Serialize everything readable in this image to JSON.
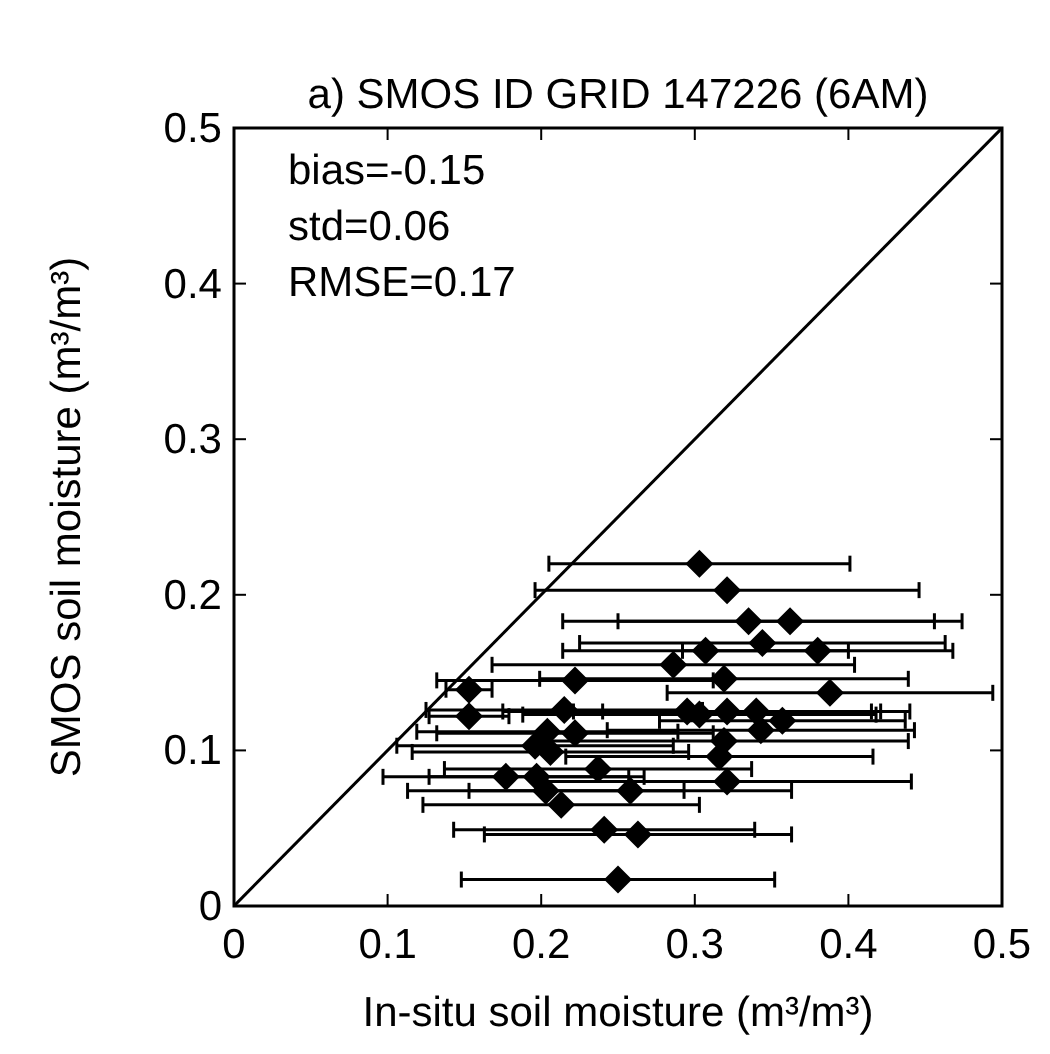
{
  "chart_data": {
    "type": "scatter",
    "title": "a) SMOS ID GRID 147226 (6AM)",
    "xlabel": "In-situ soil moisture  (m³/m³)",
    "ylabel": "SMOS soil moisture (m³/m³)",
    "xlim": [
      0,
      0.5
    ],
    "ylim": [
      0,
      0.5
    ],
    "xticks": [
      0,
      0.1,
      0.2,
      0.3,
      0.4,
      0.5
    ],
    "yticks": [
      0,
      0.1,
      0.2,
      0.3,
      0.4,
      0.5
    ],
    "grid": false,
    "annotations": [
      "bias=-0.15",
      "std=0.06",
      "RMSE=0.17"
    ],
    "series": [
      {
        "color": "#000000",
        "marker": "diamond",
        "x": [
          0.303,
          0.321,
          0.335,
          0.362,
          0.344,
          0.307,
          0.38,
          0.286,
          0.222,
          0.319,
          0.153,
          0.388,
          0.153,
          0.215,
          0.295,
          0.303,
          0.321,
          0.34,
          0.357,
          0.343,
          0.204,
          0.222,
          0.319,
          0.196,
          0.206,
          0.316,
          0.237,
          0.177,
          0.197,
          0.321,
          0.203,
          0.258,
          0.213,
          0.241,
          0.263,
          0.25
        ],
        "values": [
          0.22,
          0.203,
          0.183,
          0.183,
          0.169,
          0.164,
          0.164,
          0.155,
          0.145,
          0.146,
          0.139,
          0.137,
          0.122,
          0.126,
          0.125,
          0.123,
          0.125,
          0.125,
          0.119,
          0.113,
          0.112,
          0.111,
          0.106,
          0.103,
          0.099,
          0.096,
          0.088,
          0.083,
          0.083,
          0.08,
          0.074,
          0.074,
          0.065,
          0.049,
          0.046,
          0.017
        ],
        "xerrors": [
          0.098,
          0.125,
          0.121,
          0.112,
          0.119,
          0.093,
          0.088,
          0.118,
          0.09,
          0.12,
          0.015,
          0.106,
          0.026,
          0.09,
          0.12,
          0.115,
          0.1,
          0.1,
          0.08,
          0.1,
          0.085,
          0.09,
          0.12,
          0.09,
          0.09,
          0.1,
          0.1,
          0.08,
          0.07,
          0.12,
          0.09,
          0.105,
          0.09,
          0.098,
          0.1,
          0.102
        ]
      },
      {
        "type": "line",
        "color": "#000000",
        "marker": "none",
        "x": [
          0,
          0.5
        ],
        "values": [
          0,
          0.5
        ]
      }
    ]
  }
}
